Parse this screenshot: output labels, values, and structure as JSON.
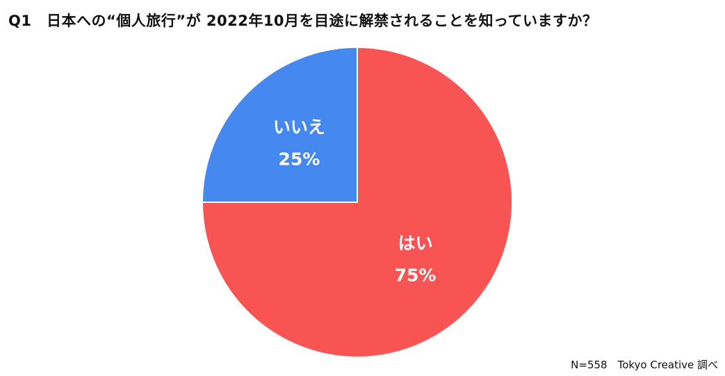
{
  "title": "Q1　日本への“個人旅行”が 2022年10月を目途に解禁されることを知っていますか？",
  "footer": "N=558　Tokyo Creative 調べ",
  "colors": {
    "yes": "#f95454",
    "no": "#4488f0"
  },
  "chart_data": {
    "type": "pie",
    "title": "Q1　日本への“個人旅行”が 2022年10月を目途に解禁されることを知っていますか？",
    "slices": [
      {
        "label": "はい",
        "value": 75,
        "percent_label": "75%",
        "color": "#f95454"
      },
      {
        "label": "いいえ",
        "value": 25,
        "percent_label": "25%",
        "color": "#4488f0"
      }
    ],
    "start_angle": "12 o'clock",
    "direction": "clockwise"
  }
}
